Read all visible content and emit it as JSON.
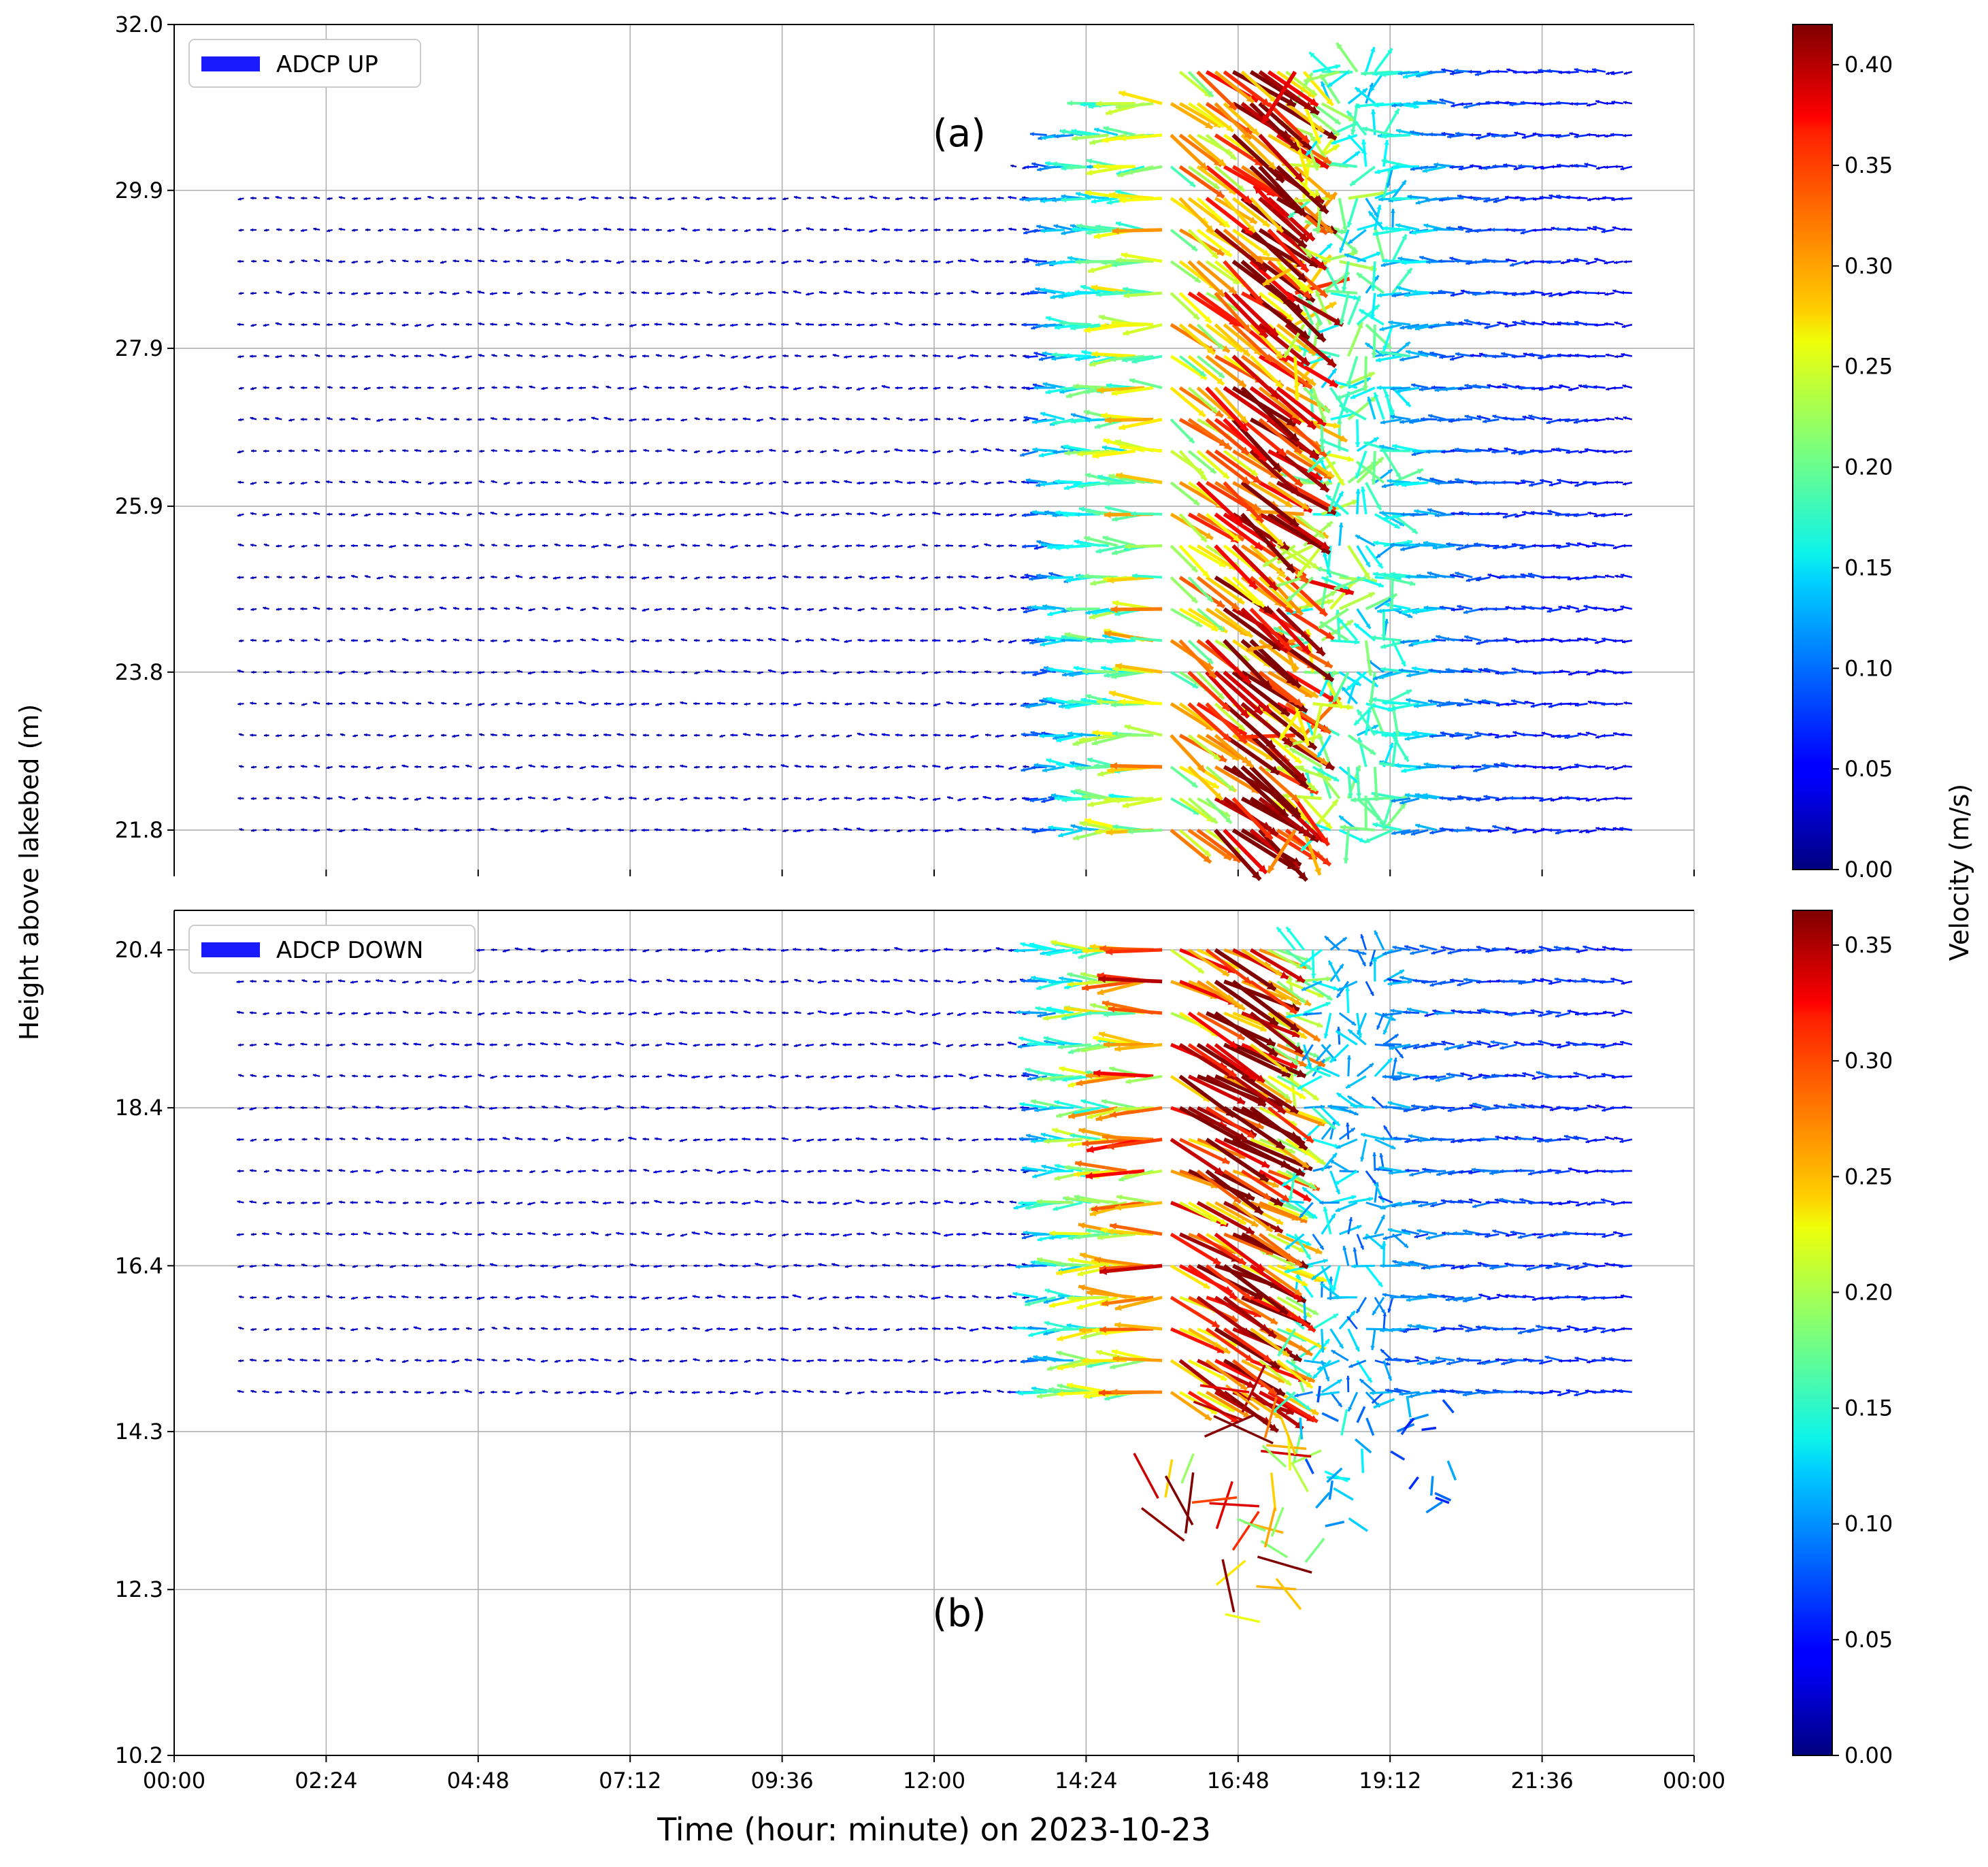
{
  "figure": {
    "ylabel_shared": "Height above lakebed (m)",
    "xlabel": "Time (hour: minute) on 2023-10-23",
    "colorbar_label": "Velocity (m/s)",
    "colormap": "jet"
  },
  "chart_data": [
    {
      "type": "quiver",
      "panel_label": "(a)",
      "legend": "ADCP UP",
      "legend_color": "#1a1aff",
      "grid": true,
      "xlim": [
        "00:00",
        "24:00"
      ],
      "x_ticks": [
        "00:00",
        "02:24",
        "04:48",
        "07:12",
        "09:36",
        "12:00",
        "14:24",
        "16:48",
        "19:12",
        "21:36",
        "00:00"
      ],
      "ylim": [
        21.3,
        32.0
      ],
      "y_ticks": [
        32.0,
        29.9,
        27.9,
        25.9,
        23.8,
        21.8
      ],
      "colorbar": {
        "min": 0.0,
        "max": 0.42,
        "ticks": [
          0.0,
          0.05,
          0.1,
          0.15,
          0.2,
          0.25,
          0.3,
          0.35,
          0.4
        ]
      },
      "bins_m": {
        "first": 21.8,
        "last": 31.4,
        "spacing": 0.4
      },
      "time_span": [
        "01:06",
        "23:06"
      ],
      "water_surface_m": [
        [
          1.1,
          29.9
        ],
        [
          5.0,
          29.95
        ],
        [
          9.6,
          29.9
        ],
        [
          12.0,
          29.9
        ],
        [
          13.2,
          30.1
        ],
        [
          14.0,
          30.8
        ],
        [
          15.5,
          31.2
        ],
        [
          16.5,
          31.6
        ],
        [
          24.0,
          31.6
        ]
      ],
      "velocity_by_time_m_s": [
        [
          1.0,
          0.02
        ],
        [
          13.5,
          0.03
        ],
        [
          13.6,
          0.08
        ],
        [
          15.0,
          0.2
        ],
        [
          16.3,
          0.3
        ],
        [
          16.9,
          0.4
        ],
        [
          17.7,
          0.3
        ],
        [
          18.0,
          0.2
        ],
        [
          19.5,
          0.15
        ],
        [
          20.5,
          0.08
        ],
        [
          23.1,
          0.05
        ]
      ]
    },
    {
      "type": "quiver",
      "panel_label": "(b)",
      "legend": "ADCP DOWN",
      "legend_color": "#1a1aff",
      "grid": true,
      "xlim": [
        "00:00",
        "24:00"
      ],
      "x_ticks": [
        "00:00",
        "02:24",
        "04:48",
        "07:12",
        "09:36",
        "12:00",
        "14:24",
        "16:48",
        "19:12",
        "21:36",
        "00:00"
      ],
      "ylim": [
        10.2,
        20.9
      ],
      "y_ticks": [
        20.4,
        18.4,
        16.4,
        14.3,
        12.3,
        10.2
      ],
      "colorbar": {
        "min": 0.0,
        "max": 0.365,
        "ticks": [
          0.0,
          0.05,
          0.1,
          0.15,
          0.2,
          0.25,
          0.3,
          0.35
        ]
      },
      "bins_m": {
        "first": 14.8,
        "last": 20.4,
        "spacing": 0.4
      },
      "time_span": [
        "01:06",
        "23:06"
      ],
      "bottom_edge_m": [
        [
          1.1,
          14.8
        ],
        [
          13.3,
          14.4
        ],
        [
          15.5,
          13.2
        ],
        [
          16.3,
          11.5
        ],
        [
          17.7,
          12.5
        ],
        [
          19.1,
          13.0
        ],
        [
          20.5,
          13.5
        ],
        [
          24.0,
          13.5
        ]
      ],
      "velocity_by_time_m_s": [
        [
          1.0,
          0.02
        ],
        [
          13.5,
          0.03
        ],
        [
          13.6,
          0.1
        ],
        [
          15.0,
          0.22
        ],
        [
          16.0,
          0.3
        ],
        [
          16.7,
          0.35
        ],
        [
          17.5,
          0.2
        ],
        [
          18.0,
          0.12
        ],
        [
          20.0,
          0.08
        ],
        [
          23.1,
          0.05
        ]
      ]
    }
  ]
}
